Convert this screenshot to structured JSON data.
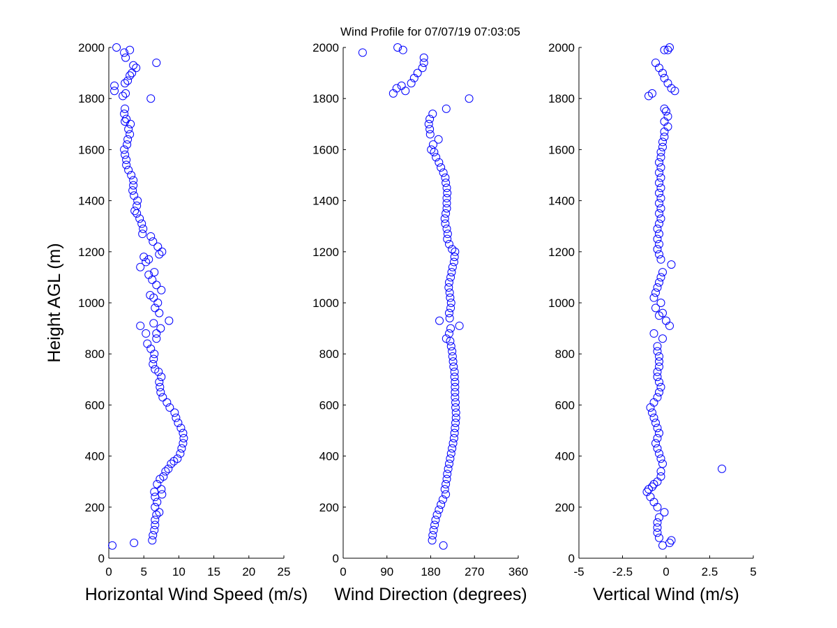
{
  "figure": {
    "title": "Wind Profile for  07/07/19 07:03:05",
    "ylabel": "Height AGL (m)"
  },
  "colors": {
    "marker": "#0000ff",
    "axis": "#000000",
    "background": "#ffffff"
  },
  "chart_data": [
    {
      "type": "scatter",
      "xlabel": "Horizontal Wind Speed (m/s)",
      "ylabel": "Height AGL (m)",
      "xlim": [
        0,
        25
      ],
      "ylim": [
        0,
        2000
      ],
      "xticks": [
        "0",
        "5",
        "10",
        "15",
        "20",
        "25"
      ],
      "yticks": [
        "0",
        "200",
        "400",
        "600",
        "800",
        "1000",
        "1200",
        "1400",
        "1600",
        "1800",
        "2000"
      ],
      "marker": "open-circle",
      "grid": false,
      "points": [
        [
          0.5,
          50
        ],
        [
          3.6,
          60
        ],
        [
          6.2,
          70
        ],
        [
          6.3,
          90
        ],
        [
          6.5,
          110
        ],
        [
          6.6,
          130
        ],
        [
          6.6,
          150
        ],
        [
          6.8,
          170
        ],
        [
          7.2,
          180
        ],
        [
          6.6,
          200
        ],
        [
          6.9,
          220
        ],
        [
          6.6,
          240
        ],
        [
          7.6,
          250
        ],
        [
          6.5,
          260
        ],
        [
          7.5,
          270
        ],
        [
          6.9,
          290
        ],
        [
          7.3,
          310
        ],
        [
          7.8,
          320
        ],
        [
          8.1,
          340
        ],
        [
          8.5,
          350
        ],
        [
          8.9,
          370
        ],
        [
          9.3,
          380
        ],
        [
          9.8,
          390
        ],
        [
          10.2,
          410
        ],
        [
          10.4,
          430
        ],
        [
          10.6,
          450
        ],
        [
          10.7,
          470
        ],
        [
          10.6,
          490
        ],
        [
          10.3,
          510
        ],
        [
          9.9,
          530
        ],
        [
          9.6,
          550
        ],
        [
          9.4,
          570
        ],
        [
          8.7,
          590
        ],
        [
          8.3,
          610
        ],
        [
          7.7,
          630
        ],
        [
          7.4,
          650
        ],
        [
          7.3,
          670
        ],
        [
          7.2,
          690
        ],
        [
          7.5,
          710
        ],
        [
          7.1,
          730
        ],
        [
          6.6,
          740
        ],
        [
          6.3,
          760
        ],
        [
          6.4,
          780
        ],
        [
          6.5,
          800
        ],
        [
          6.0,
          820
        ],
        [
          5.5,
          840
        ],
        [
          6.8,
          860
        ],
        [
          8.6,
          930
        ],
        [
          7.4,
          900
        ],
        [
          4.5,
          910
        ],
        [
          6.4,
          920
        ],
        [
          5.3,
          880
        ],
        [
          6.8,
          880
        ],
        [
          7.2,
          960
        ],
        [
          6.6,
          980
        ],
        [
          7.0,
          1000
        ],
        [
          6.4,
          1020
        ],
        [
          5.9,
          1030
        ],
        [
          7.5,
          1050
        ],
        [
          6.8,
          1070
        ],
        [
          6.2,
          1090
        ],
        [
          5.7,
          1110
        ],
        [
          6.5,
          1120
        ],
        [
          4.5,
          1140
        ],
        [
          5.3,
          1160
        ],
        [
          5.7,
          1170
        ],
        [
          5.0,
          1180
        ],
        [
          7.2,
          1190
        ],
        [
          7.6,
          1200
        ],
        [
          7.0,
          1220
        ],
        [
          6.3,
          1240
        ],
        [
          6.0,
          1260
        ],
        [
          4.8,
          1270
        ],
        [
          4.9,
          1290
        ],
        [
          4.7,
          1310
        ],
        [
          4.4,
          1330
        ],
        [
          4.0,
          1350
        ],
        [
          3.7,
          1360
        ],
        [
          4.0,
          1380
        ],
        [
          4.1,
          1400
        ],
        [
          3.6,
          1420
        ],
        [
          3.4,
          1440
        ],
        [
          3.5,
          1460
        ],
        [
          3.5,
          1480
        ],
        [
          3.2,
          1500
        ],
        [
          2.8,
          1520
        ],
        [
          2.5,
          1540
        ],
        [
          2.5,
          1560
        ],
        [
          2.3,
          1580
        ],
        [
          2.2,
          1600
        ],
        [
          2.6,
          1620
        ],
        [
          2.7,
          1640
        ],
        [
          3.0,
          1660
        ],
        [
          2.8,
          1680
        ],
        [
          3.1,
          1700
        ],
        [
          2.3,
          1710
        ],
        [
          2.5,
          1720
        ],
        [
          2.2,
          1740
        ],
        [
          2.3,
          1760
        ],
        [
          6.0,
          1800
        ],
        [
          2.0,
          1810
        ],
        [
          0.8,
          1830
        ],
        [
          2.4,
          1820
        ],
        [
          0.8,
          1850
        ],
        [
          2.3,
          1860
        ],
        [
          2.7,
          1870
        ],
        [
          3.0,
          1890
        ],
        [
          3.3,
          1900
        ],
        [
          3.9,
          1920
        ],
        [
          3.5,
          1930
        ],
        [
          6.8,
          1940
        ],
        [
          2.4,
          1960
        ],
        [
          2.2,
          1980
        ],
        [
          3.0,
          1990
        ],
        [
          1.1,
          2000
        ]
      ]
    },
    {
      "type": "scatter",
      "xlabel": "Wind Direction (degrees)",
      "ylabel": "",
      "xlim": [
        0,
        360
      ],
      "ylim": [
        0,
        2000
      ],
      "xticks": [
        "0",
        "90",
        "180",
        "270",
        "360"
      ],
      "yticks": [
        "0",
        "200",
        "400",
        "600",
        "800",
        "1000",
        "1200",
        "1400",
        "1600",
        "1800",
        "2000"
      ],
      "marker": "open-circle",
      "grid": false,
      "points": [
        [
          206,
          50
        ],
        [
          183,
          70
        ],
        [
          184,
          90
        ],
        [
          186,
          110
        ],
        [
          188,
          130
        ],
        [
          190,
          150
        ],
        [
          193,
          170
        ],
        [
          197,
          190
        ],
        [
          201,
          210
        ],
        [
          205,
          230
        ],
        [
          211,
          250
        ],
        [
          209,
          270
        ],
        [
          211,
          290
        ],
        [
          213,
          310
        ],
        [
          214,
          330
        ],
        [
          216,
          350
        ],
        [
          218,
          370
        ],
        [
          220,
          390
        ],
        [
          222,
          410
        ],
        [
          224,
          430
        ],
        [
          226,
          450
        ],
        [
          228,
          470
        ],
        [
          229,
          490
        ],
        [
          230,
          510
        ],
        [
          231,
          530
        ],
        [
          232,
          550
        ],
        [
          232,
          570
        ],
        [
          231,
          590
        ],
        [
          231,
          610
        ],
        [
          230,
          630
        ],
        [
          230,
          650
        ],
        [
          230,
          670
        ],
        [
          230,
          690
        ],
        [
          229,
          710
        ],
        [
          229,
          730
        ],
        [
          227,
          750
        ],
        [
          226,
          770
        ],
        [
          225,
          790
        ],
        [
          224,
          810
        ],
        [
          222,
          830
        ],
        [
          220,
          850
        ],
        [
          212,
          860
        ],
        [
          218,
          880
        ],
        [
          239,
          910
        ],
        [
          198,
          930
        ],
        [
          221,
          900
        ],
        [
          219,
          940
        ],
        [
          218,
          960
        ],
        [
          221,
          980
        ],
        [
          222,
          1000
        ],
        [
          220,
          1020
        ],
        [
          219,
          1040
        ],
        [
          217,
          1060
        ],
        [
          218,
          1080
        ],
        [
          221,
          1100
        ],
        [
          223,
          1120
        ],
        [
          225,
          1140
        ],
        [
          228,
          1160
        ],
        [
          229,
          1180
        ],
        [
          230,
          1200
        ],
        [
          224,
          1210
        ],
        [
          218,
          1230
        ],
        [
          214,
          1250
        ],
        [
          215,
          1270
        ],
        [
          213,
          1290
        ],
        [
          210,
          1310
        ],
        [
          209,
          1330
        ],
        [
          211,
          1350
        ],
        [
          213,
          1370
        ],
        [
          213,
          1390
        ],
        [
          213,
          1410
        ],
        [
          214,
          1430
        ],
        [
          213,
          1450
        ],
        [
          211,
          1470
        ],
        [
          210,
          1490
        ],
        [
          206,
          1510
        ],
        [
          201,
          1530
        ],
        [
          197,
          1550
        ],
        [
          191,
          1570
        ],
        [
          187,
          1590
        ],
        [
          181,
          1600
        ],
        [
          185,
          1620
        ],
        [
          196,
          1640
        ],
        [
          179,
          1660
        ],
        [
          178,
          1680
        ],
        [
          176,
          1700
        ],
        [
          178,
          1720
        ],
        [
          184,
          1740
        ],
        [
          212,
          1760
        ],
        [
          259,
          1800
        ],
        [
          103,
          1820
        ],
        [
          128,
          1830
        ],
        [
          110,
          1840
        ],
        [
          120,
          1850
        ],
        [
          140,
          1860
        ],
        [
          146,
          1880
        ],
        [
          153,
          1900
        ],
        [
          163,
          1920
        ],
        [
          166,
          1940
        ],
        [
          166,
          1960
        ],
        [
          40,
          1980
        ],
        [
          123,
          1990
        ],
        [
          112,
          2000
        ]
      ]
    },
    {
      "type": "scatter",
      "xlabel": "Vertical Wind (m/s)",
      "ylabel": "",
      "xlim": [
        -5,
        5
      ],
      "ylim": [
        0,
        2000
      ],
      "xticks": [
        "-5",
        "-2.5",
        "0",
        "2.5",
        "5"
      ],
      "yticks": [
        "0",
        "200",
        "400",
        "600",
        "800",
        "1000",
        "1200",
        "1400",
        "1600",
        "1800",
        "2000"
      ],
      "marker": "open-circle",
      "grid": false,
      "points": [
        [
          -0.2,
          50
        ],
        [
          0.2,
          60
        ],
        [
          0.3,
          70
        ],
        [
          -0.4,
          80
        ],
        [
          -0.5,
          100
        ],
        [
          -0.5,
          120
        ],
        [
          -0.5,
          140
        ],
        [
          -0.4,
          160
        ],
        [
          -0.1,
          180
        ],
        [
          -0.5,
          200
        ],
        [
          -0.7,
          220
        ],
        [
          -0.9,
          240
        ],
        [
          -1.1,
          260
        ],
        [
          -1.0,
          270
        ],
        [
          -0.8,
          280
        ],
        [
          -0.7,
          290
        ],
        [
          -0.5,
          300
        ],
        [
          -0.3,
          320
        ],
        [
          -0.3,
          340
        ],
        [
          3.2,
          350
        ],
        [
          -0.2,
          370
        ],
        [
          -0.3,
          390
        ],
        [
          -0.4,
          410
        ],
        [
          -0.5,
          430
        ],
        [
          -0.6,
          450
        ],
        [
          -0.5,
          470
        ],
        [
          -0.4,
          490
        ],
        [
          -0.5,
          510
        ],
        [
          -0.6,
          530
        ],
        [
          -0.7,
          550
        ],
        [
          -0.8,
          570
        ],
        [
          -0.9,
          590
        ],
        [
          -0.7,
          610
        ],
        [
          -0.5,
          630
        ],
        [
          -0.4,
          650
        ],
        [
          -0.3,
          670
        ],
        [
          -0.4,
          690
        ],
        [
          -0.5,
          710
        ],
        [
          -0.5,
          730
        ],
        [
          -0.4,
          750
        ],
        [
          -0.4,
          770
        ],
        [
          -0.4,
          790
        ],
        [
          -0.5,
          810
        ],
        [
          -0.5,
          830
        ],
        [
          -0.2,
          860
        ],
        [
          -0.7,
          880
        ],
        [
          0.2,
          910
        ],
        [
          0.0,
          930
        ],
        [
          -0.4,
          950
        ],
        [
          -0.2,
          960
        ],
        [
          -0.6,
          980
        ],
        [
          -0.3,
          1000
        ],
        [
          -0.7,
          1020
        ],
        [
          -0.6,
          1040
        ],
        [
          -0.5,
          1060
        ],
        [
          -0.4,
          1080
        ],
        [
          -0.3,
          1100
        ],
        [
          -0.2,
          1120
        ],
        [
          0.3,
          1150
        ],
        [
          -0.3,
          1170
        ],
        [
          -0.4,
          1190
        ],
        [
          -0.5,
          1210
        ],
        [
          -0.4,
          1230
        ],
        [
          -0.5,
          1250
        ],
        [
          -0.4,
          1270
        ],
        [
          -0.5,
          1290
        ],
        [
          -0.4,
          1310
        ],
        [
          -0.3,
          1330
        ],
        [
          -0.4,
          1350
        ],
        [
          -0.3,
          1370
        ],
        [
          -0.4,
          1390
        ],
        [
          -0.3,
          1410
        ],
        [
          -0.4,
          1430
        ],
        [
          -0.3,
          1450
        ],
        [
          -0.4,
          1470
        ],
        [
          -0.3,
          1490
        ],
        [
          -0.4,
          1510
        ],
        [
          -0.3,
          1530
        ],
        [
          -0.4,
          1550
        ],
        [
          -0.3,
          1570
        ],
        [
          -0.3,
          1590
        ],
        [
          -0.2,
          1610
        ],
        [
          -0.2,
          1630
        ],
        [
          -0.1,
          1650
        ],
        [
          -0.1,
          1670
        ],
        [
          0.1,
          1690
        ],
        [
          -0.1,
          1710
        ],
        [
          0.1,
          1730
        ],
        [
          0.0,
          1750
        ],
        [
          -0.1,
          1760
        ],
        [
          -1.0,
          1810
        ],
        [
          -0.8,
          1820
        ],
        [
          0.5,
          1830
        ],
        [
          0.3,
          1840
        ],
        [
          0.1,
          1860
        ],
        [
          -0.1,
          1880
        ],
        [
          -0.2,
          1900
        ],
        [
          -0.4,
          1920
        ],
        [
          -0.6,
          1940
        ],
        [
          0.1,
          1990
        ],
        [
          -0.1,
          1990
        ],
        [
          0.2,
          2000
        ]
      ]
    }
  ]
}
